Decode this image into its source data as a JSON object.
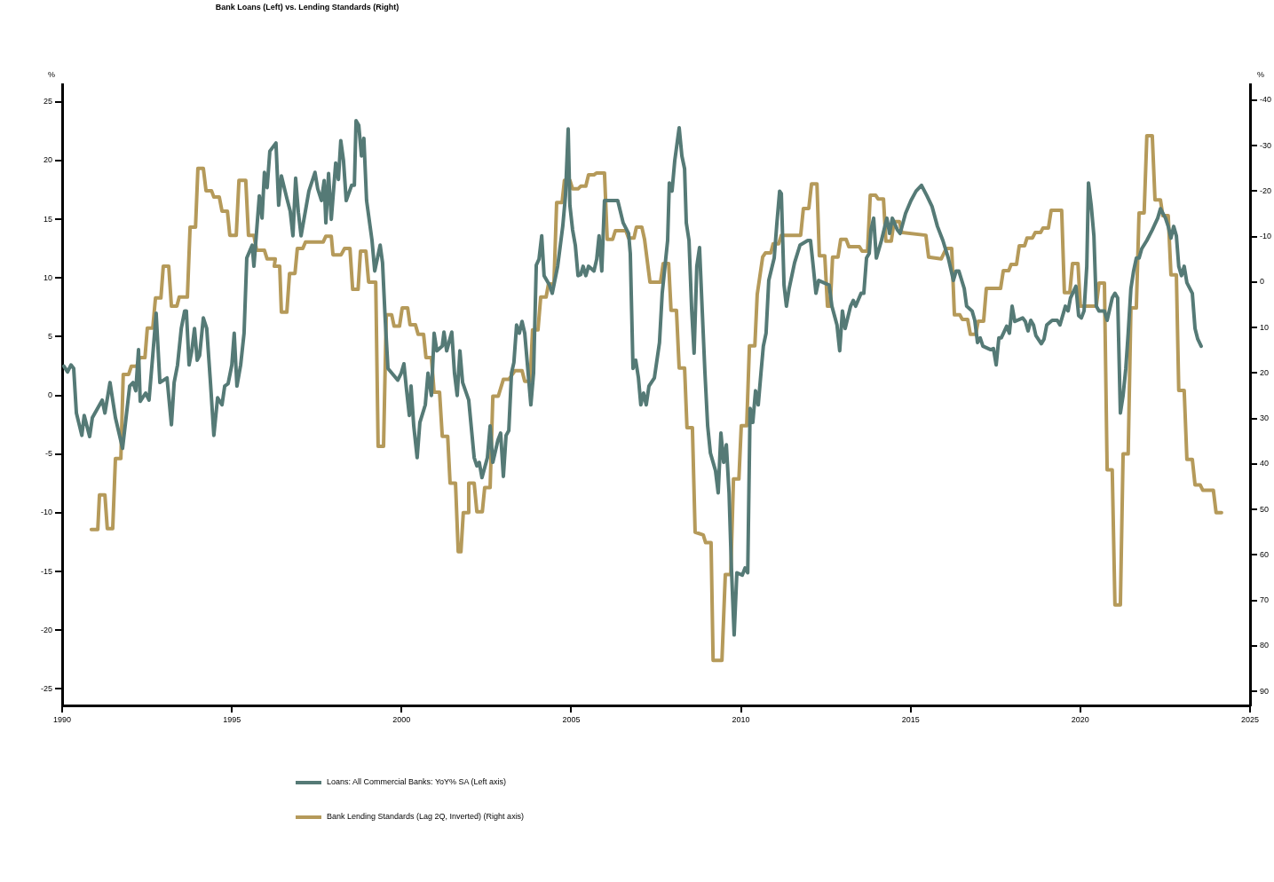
{
  "chart_data": {
    "type": "line",
    "title": "Bank Loans (Left) vs. Lending Standards (Right)",
    "ylabel": "%",
    "y2label": "%",
    "xlim": [
      1990,
      2025
    ],
    "xticks": [
      1990,
      1995,
      2000,
      2005,
      2010,
      2015,
      2020,
      2025
    ],
    "ylim": [
      -26.4,
      26.5
    ],
    "yticks": [
      -25,
      -20,
      -15,
      -10,
      -5,
      0,
      5,
      10,
      15,
      20,
      25
    ],
    "y2lim": [
      93.1,
      -43.5
    ],
    "y2ticks": [
      -40,
      -30,
      -20,
      -10,
      0,
      10,
      20,
      30,
      40,
      50,
      60,
      70,
      80,
      90
    ],
    "grid": false,
    "legend": "bottom",
    "marker": "none",
    "line_style": "solid",
    "series": [
      {
        "name": "Loans: All Commercial Banks: YoY% SA (Left axis)",
        "color": "#557a76",
        "axis": "y",
        "x": [
          1990.05,
          1990.16,
          1990.26,
          1990.34,
          1990.42,
          1990.58,
          1990.65,
          1990.81,
          1990.89,
          1991.18,
          1991.26,
          1991.41,
          1991.57,
          1991.78,
          1991.99,
          1992.09,
          1992.17,
          1992.25,
          1992.3,
          1992.46,
          1992.56,
          1992.67,
          1992.77,
          1992.88,
          1993.09,
          1993.22,
          1993.3,
          1993.4,
          1993.51,
          1993.61,
          1993.66,
          1993.74,
          1993.82,
          1993.9,
          1993.98,
          1994.05,
          1994.16,
          1994.26,
          1994.37,
          1994.47,
          1994.58,
          1994.71,
          1994.79,
          1994.89,
          1995.0,
          1995.07,
          1995.15,
          1995.26,
          1995.36,
          1995.44,
          1995.6,
          1995.65,
          1995.73,
          1995.81,
          1995.89,
          1995.96,
          1996.04,
          1996.12,
          1996.3,
          1996.38,
          1996.46,
          1996.62,
          1996.72,
          1996.8,
          1996.88,
          1996.96,
          1997.04,
          1997.27,
          1997.45,
          1997.53,
          1997.64,
          1997.72,
          1997.77,
          1997.85,
          1997.93,
          1998.06,
          1998.14,
          1998.21,
          1998.29,
          1998.37,
          1998.53,
          1998.61,
          1998.66,
          1998.74,
          1998.82,
          1998.89,
          1998.97,
          1999.13,
          1999.21,
          1999.29,
          1999.37,
          1999.44,
          1999.52,
          1999.6,
          1999.89,
          1999.99,
          2000.07,
          2000.15,
          2000.23,
          2000.28,
          2000.36,
          2000.46,
          2000.54,
          2000.7,
          2000.78,
          2000.88,
          2000.96,
          2001.04,
          2001.2,
          2001.25,
          2001.33,
          2001.48,
          2001.56,
          2001.64,
          2001.72,
          2001.8,
          2001.98,
          2002.14,
          2002.22,
          2002.29,
          2002.37,
          2002.53,
          2002.61,
          2002.69,
          2002.84,
          2002.92,
          2003.0,
          2003.08,
          2003.16,
          2003.24,
          2003.31,
          2003.39,
          2003.47,
          2003.55,
          2003.63,
          2003.71,
          2003.81,
          2003.89,
          2003.97,
          2004.05,
          2004.13,
          2004.2,
          2004.36,
          2004.44,
          2004.6,
          2004.75,
          2004.83,
          2004.91,
          2004.96,
          2005.04,
          2005.12,
          2005.2,
          2005.28,
          2005.35,
          2005.43,
          2005.51,
          2005.67,
          2005.75,
          2005.82,
          2005.9,
          2005.98,
          2006.37,
          2006.53,
          2006.69,
          2006.74,
          2006.82,
          2006.9,
          2006.98,
          2007.05,
          2007.13,
          2007.21,
          2007.29,
          2007.45,
          2007.6,
          2007.68,
          2007.84,
          2007.89,
          2007.97,
          2008.05,
          2008.18,
          2008.26,
          2008.34,
          2008.39,
          2008.47,
          2008.55,
          2008.62,
          2008.7,
          2008.78,
          2008.86,
          2008.94,
          2009.02,
          2009.1,
          2009.25,
          2009.33,
          2009.41,
          2009.49,
          2009.57,
          2009.65,
          2009.72,
          2009.8,
          2009.88,
          2010.04,
          2010.12,
          2010.2,
          2010.27,
          2010.35,
          2010.43,
          2010.51,
          2010.59,
          2010.66,
          2010.74,
          2010.82,
          2010.98,
          2011.06,
          2011.14,
          2011.19,
          2011.27,
          2011.34,
          2011.42,
          2011.58,
          2011.74,
          2011.97,
          2012.05,
          2012.13,
          2012.21,
          2012.29,
          2012.44,
          2012.6,
          2012.68,
          2012.83,
          2012.91,
          2012.99,
          2013.07,
          2013.23,
          2013.31,
          2013.38,
          2013.54,
          2013.62,
          2013.7,
          2013.78,
          2013.83,
          2013.91,
          2013.99,
          2014.14,
          2014.3,
          2014.38,
          2014.46,
          2014.61,
          2014.69,
          2014.85,
          2015.01,
          2015.16,
          2015.32,
          2015.48,
          2015.63,
          2015.79,
          2015.95,
          2016.11,
          2016.26,
          2016.34,
          2016.42,
          2016.58,
          2016.65,
          2016.81,
          2016.89,
          2016.97,
          2017.05,
          2017.13,
          2017.36,
          2017.44,
          2017.52,
          2017.6,
          2017.67,
          2017.83,
          2017.91,
          2017.99,
          2018.07,
          2018.3,
          2018.38,
          2018.46,
          2018.54,
          2018.62,
          2018.69,
          2018.85,
          2018.93,
          2019.01,
          2019.17,
          2019.32,
          2019.4,
          2019.56,
          2019.64,
          2019.71,
          2019.87,
          2019.95,
          2020.03,
          2020.11,
          2020.19,
          2020.24,
          2020.32,
          2020.4,
          2020.47,
          2020.55,
          2020.71,
          2020.79,
          2020.94,
          2021.02,
          2021.1,
          2021.18,
          2021.26,
          2021.34,
          2021.41,
          2021.49,
          2021.57,
          2021.65,
          2021.73,
          2021.81,
          2021.96,
          2022.12,
          2022.28,
          2022.36,
          2022.51,
          2022.59,
          2022.67,
          2022.75,
          2022.83,
          2022.9,
          2022.98,
          2023.06,
          2023.14,
          2023.3,
          2023.38,
          2023.46,
          2023.56
        ],
        "values": [
          2.5,
          2.0,
          2.6,
          2.3,
          -1.5,
          -3.4,
          -1.7,
          -3.5,
          -1.9,
          -0.4,
          -1.5,
          1.1,
          -1.9,
          -4.5,
          0.8,
          1.1,
          0.4,
          3.9,
          -0.5,
          0.2,
          -0.4,
          3.4,
          7.0,
          1.1,
          1.5,
          -2.5,
          1.1,
          2.6,
          5.7,
          7.2,
          7.2,
          2.6,
          3.8,
          5.7,
          3.0,
          3.4,
          6.6,
          5.7,
          1.1,
          -3.4,
          -0.2,
          -0.8,
          0.8,
          1.0,
          2.6,
          5.3,
          0.8,
          2.6,
          5.3,
          11.7,
          12.8,
          11.0,
          14.0,
          17.0,
          15.1,
          19.0,
          17.7,
          20.8,
          21.5,
          16.2,
          18.7,
          16.8,
          15.7,
          13.6,
          18.5,
          15.6,
          13.6,
          17.4,
          19.0,
          17.6,
          16.6,
          18.3,
          14.7,
          18.9,
          15.0,
          19.8,
          18.4,
          21.7,
          20.0,
          16.6,
          17.9,
          17.9,
          23.4,
          23.0,
          20.4,
          21.9,
          16.6,
          13.2,
          10.6,
          11.7,
          12.8,
          11.3,
          6.4,
          2.3,
          1.3,
          1.9,
          2.7,
          0.4,
          -1.7,
          0.8,
          -2.6,
          -5.3,
          -2.3,
          -0.8,
          1.9,
          0.0,
          5.3,
          3.8,
          4.2,
          5.4,
          3.8,
          5.4,
          1.9,
          0.0,
          3.8,
          1.1,
          -0.4,
          -5.3,
          -6.0,
          -5.7,
          -7.0,
          -5.3,
          -2.6,
          -5.7,
          -3.8,
          -3.2,
          -6.9,
          -3.4,
          -3.0,
          1.9,
          2.8,
          6.0,
          5.3,
          6.3,
          5.3,
          2.6,
          -0.8,
          1.9,
          11.1,
          11.6,
          13.6,
          10.2,
          9.4,
          8.7,
          11.0,
          14.4,
          17.0,
          22.7,
          16.2,
          14.1,
          12.8,
          10.2,
          10.3,
          11.0,
          10.2,
          11.0,
          10.6,
          11.6,
          13.6,
          10.6,
          16.6,
          16.6,
          14.7,
          13.8,
          12.1,
          2.3,
          3.0,
          1.5,
          -0.8,
          0.2,
          -0.8,
          0.8,
          1.5,
          4.5,
          8.7,
          13.2,
          18.1,
          17.4,
          20.0,
          22.8,
          20.4,
          19.3,
          14.7,
          13.2,
          7.2,
          3.6,
          11.0,
          12.6,
          7.2,
          1.9,
          -2.6,
          -4.9,
          -6.4,
          -8.3,
          -3.2,
          -5.7,
          -4.2,
          -8.3,
          -14.7,
          -20.4,
          -15.1,
          -15.3,
          -14.7,
          -15.1,
          -1.1,
          -2.3,
          0.4,
          -0.8,
          1.9,
          4.2,
          5.3,
          9.8,
          11.7,
          14.7,
          17.4,
          17.2,
          9.4,
          7.6,
          9.1,
          11.3,
          12.8,
          13.2,
          13.2,
          11.0,
          8.7,
          9.8,
          9.6,
          9.4,
          7.6,
          6.0,
          3.8,
          7.2,
          5.7,
          7.6,
          8.1,
          7.6,
          8.7,
          8.7,
          11.7,
          12.1,
          14.1,
          15.1,
          11.7,
          13.2,
          15.1,
          13.8,
          15.1,
          14.1,
          13.8,
          15.5,
          16.6,
          17.4,
          17.9,
          17.0,
          16.1,
          14.4,
          13.2,
          11.7,
          9.8,
          10.6,
          10.6,
          9.1,
          7.6,
          7.2,
          6.4,
          4.5,
          4.9,
          4.2,
          3.9,
          4.0,
          2.6,
          4.9,
          4.9,
          5.9,
          5.3,
          7.6,
          6.3,
          6.6,
          6.3,
          5.5,
          6.4,
          6.0,
          5.1,
          4.4,
          4.8,
          6.0,
          6.4,
          6.4,
          6.0,
          7.6,
          7.2,
          8.3,
          9.3,
          6.8,
          6.6,
          7.2,
          11.0,
          18.1,
          16.2,
          13.6,
          7.6,
          7.2,
          7.2,
          6.4,
          8.3,
          8.7,
          8.3,
          -1.5,
          0.0,
          2.3,
          5.3,
          9.1,
          10.6,
          11.7,
          11.7,
          12.5,
          13.2,
          14.1,
          15.1,
          15.9,
          15.1,
          14.4,
          13.4,
          14.4,
          13.6,
          11.0,
          10.2,
          11.0,
          9.6,
          8.7,
          5.7,
          4.8,
          4.2
        ]
      },
      {
        "name": "Bank Lending Standards (Lag 2Q, Inverted) (Right axis)",
        "color": "#b59a5a",
        "axis": "y2",
        "x": [
          1990.86,
          1991.05,
          1991.1,
          1991.26,
          1991.33,
          1991.49,
          1991.57,
          1991.73,
          1991.8,
          1991.96,
          1992.04,
          1992.2,
          1992.28,
          1992.44,
          1992.51,
          1992.67,
          1992.75,
          1992.91,
          1992.98,
          1993.14,
          1993.22,
          1993.38,
          1993.45,
          1993.69,
          1993.77,
          1993.93,
          1994.0,
          1994.16,
          1994.24,
          1994.4,
          1994.47,
          1994.63,
          1994.71,
          1994.87,
          1994.94,
          1995.13,
          1995.21,
          1995.41,
          1995.49,
          1995.65,
          1995.73,
          1995.96,
          1996.04,
          1996.28,
          1996.25,
          1996.41,
          1996.46,
          1996.62,
          1996.7,
          1996.86,
          1996.93,
          1997.09,
          1997.17,
          1997.69,
          1997.77,
          1997.93,
          1997.98,
          1998.22,
          1998.32,
          1998.48,
          1998.56,
          1998.72,
          1998.79,
          1998.95,
          1999.03,
          1999.24,
          1999.31,
          1999.47,
          1999.55,
          1999.71,
          1999.78,
          1999.94,
          2000.02,
          2000.18,
          2000.25,
          2000.41,
          2000.49,
          2000.65,
          2000.72,
          2000.88,
          2000.96,
          2001.12,
          2001.2,
          2001.36,
          2001.43,
          2001.59,
          2001.67,
          2001.75,
          2001.82,
          2001.98,
          2001.98,
          2002.14,
          2002.22,
          2002.38,
          2002.45,
          2002.61,
          2002.69,
          2002.85,
          2003.0,
          2003.16,
          2003.34,
          2003.55,
          2003.63,
          2003.79,
          2003.86,
          2004.02,
          2004.1,
          2004.26,
          2004.33,
          2004.49,
          2004.57,
          2004.73,
          2004.8,
          2004.96,
          2005.04,
          2005.2,
          2005.28,
          2005.43,
          2005.51,
          2005.67,
          2005.75,
          2005.98,
          2006.06,
          2006.22,
          2006.3,
          2006.61,
          2006.69,
          2006.85,
          2006.92,
          2007.08,
          2007.16,
          2007.32,
          2007.63,
          2007.71,
          2007.87,
          2007.94,
          2008.1,
          2008.18,
          2008.34,
          2008.41,
          2008.57,
          2008.65,
          2008.89,
          2008.96,
          2009.12,
          2009.18,
          2009.44,
          2009.54,
          2009.7,
          2009.78,
          2009.94,
          2010.01,
          2010.17,
          2010.25,
          2010.41,
          2010.48,
          2010.64,
          2010.72,
          2010.88,
          2010.95,
          2011.11,
          2011.19,
          2011.76,
          2011.84,
          2012.0,
          2012.08,
          2012.24,
          2012.31,
          2012.47,
          2012.55,
          2012.63,
          2012.7,
          2012.86,
          2012.94,
          2013.1,
          2013.18,
          2013.49,
          2013.57,
          2013.73,
          2013.81,
          2013.97,
          2014.04,
          2014.2,
          2014.27,
          2014.43,
          2014.51,
          2014.67,
          2014.74,
          2015.45,
          2015.53,
          2015.9,
          2016.05,
          2016.21,
          2016.29,
          2016.45,
          2016.52,
          2016.68,
          2016.76,
          2016.92,
          2016.99,
          2017.15,
          2017.23,
          2017.65,
          2017.73,
          2017.89,
          2017.96,
          2018.12,
          2018.2,
          2018.36,
          2018.43,
          2018.59,
          2018.67,
          2018.83,
          2018.9,
          2019.06,
          2019.14,
          2019.45,
          2019.53,
          2019.69,
          2019.77,
          2019.93,
          2020.0,
          2020.47,
          2020.55,
          2020.71,
          2020.79,
          2020.94,
          2021.02,
          2021.18,
          2021.26,
          2021.41,
          2021.49,
          2021.65,
          2021.73,
          2021.88,
          2021.96,
          2022.12,
          2022.2,
          2022.36,
          2022.43,
          2022.59,
          2022.67,
          2022.83,
          2022.9,
          2023.06,
          2023.14,
          2023.3,
          2023.38,
          2023.53,
          2023.61,
          2023.92,
          2024.0,
          2024.16
        ],
        "values": [
          54.4,
          54.4,
          46.8,
          46.8,
          54.2,
          54.2,
          38.8,
          38.8,
          20.3,
          20.3,
          18.5,
          18.5,
          16.6,
          16.6,
          10.1,
          10.1,
          3.5,
          3.5,
          -3.5,
          -3.5,
          5.3,
          5.3,
          3.3,
          3.3,
          -12.1,
          -12.1,
          -25.0,
          -25.0,
          -20.1,
          -20.1,
          -18.7,
          -18.7,
          -15.6,
          -15.6,
          -10.3,
          -10.3,
          -22.4,
          -22.4,
          -10.3,
          -10.3,
          -7.0,
          -7.0,
          -5.1,
          -5.1,
          -3.5,
          -3.5,
          6.6,
          6.6,
          -1.9,
          -1.9,
          -7.4,
          -7.4,
          -8.8,
          -8.8,
          -10.1,
          -10.1,
          -6.0,
          -6.0,
          -7.4,
          -7.4,
          1.6,
          1.6,
          -6.8,
          -6.8,
          0.0,
          0.0,
          36.1,
          36.1,
          7.2,
          7.2,
          9.7,
          9.7,
          5.7,
          5.7,
          9.4,
          9.4,
          11.5,
          11.5,
          16.6,
          16.6,
          24.2,
          24.2,
          33.9,
          33.9,
          44.2,
          44.2,
          59.3,
          59.3,
          50.7,
          50.7,
          44.2,
          44.2,
          50.5,
          50.5,
          45.2,
          45.2,
          25.1,
          25.1,
          21.4,
          21.4,
          19.5,
          19.5,
          21.8,
          21.8,
          10.5,
          10.5,
          3.3,
          3.3,
          0.4,
          0.4,
          -17.5,
          -17.5,
          -22.4,
          -22.4,
          -20.5,
          -20.5,
          -21.1,
          -21.1,
          -23.6,
          -23.6,
          -24.0,
          -24.0,
          -9.4,
          -9.4,
          -11.3,
          -11.3,
          -9.7,
          -9.7,
          -12.1,
          -12.1,
          -9.4,
          0.0,
          0.0,
          -4.1,
          -4.1,
          6.2,
          6.2,
          18.9,
          18.9,
          32.0,
          32.0,
          55.0,
          55.6,
          57.3,
          57.3,
          83.2,
          83.2,
          64.3,
          64.3,
          43.3,
          43.3,
          31.6,
          31.6,
          14.0,
          14.0,
          2.7,
          -5.5,
          -6.4,
          -6.4,
          -8.4,
          -8.4,
          -10.3,
          -10.3,
          -16.2,
          -16.2,
          -21.6,
          -21.6,
          -5.8,
          -5.8,
          5.3,
          5.3,
          -5.5,
          -5.5,
          -9.4,
          -9.4,
          -7.8,
          -7.8,
          -6.8,
          -6.8,
          -19.1,
          -19.1,
          -18.3,
          -18.3,
          -9.0,
          -9.0,
          -13.3,
          -13.3,
          -10.9,
          -10.3,
          -5.5,
          -5.1,
          -7.4,
          -7.4,
          7.2,
          7.2,
          8.2,
          8.2,
          11.5,
          11.5,
          8.6,
          8.6,
          1.4,
          1.4,
          -2.5,
          -2.5,
          -3.9,
          -3.9,
          -8.0,
          -8.0,
          -9.7,
          -9.7,
          -10.9,
          -10.9,
          -11.9,
          -11.9,
          -15.8,
          -15.8,
          2.3,
          2.3,
          -4.1,
          -4.1,
          5.3,
          5.3,
          0.2,
          0.2,
          41.3,
          41.3,
          71.0,
          71.0,
          37.8,
          37.8,
          5.7,
          5.7,
          -15.2,
          -15.2,
          -32.2,
          -32.2,
          -18.1,
          -18.1,
          -14.6,
          -14.6,
          -1.6,
          -1.6,
          23.8,
          23.8,
          39.0,
          39.0,
          44.6,
          44.6,
          45.8,
          45.8,
          50.7,
          50.7
        ]
      }
    ]
  }
}
